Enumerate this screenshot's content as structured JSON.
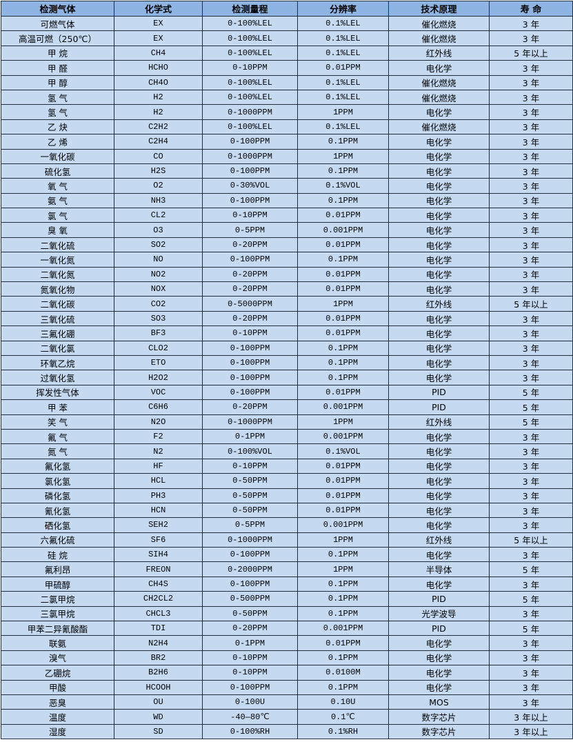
{
  "table": {
    "headers": [
      "检测气体",
      "化学式",
      "检测量程",
      "分辨率",
      "技术原理",
      "寿 命"
    ],
    "rows": [
      [
        "可燃气体",
        "EX",
        "0-100%LEL",
        "0.1%LEL",
        "催化燃烧",
        "3 年"
      ],
      [
        "高温可燃（250℃）",
        "EX",
        "0-100%LEL",
        "0.1%LEL",
        "催化燃烧",
        "3 年"
      ],
      [
        "甲 烷",
        "CH4",
        "0-100%LEL",
        "0.1%LEL",
        "红外线",
        "5 年以上"
      ],
      [
        "甲 醛",
        "HCHO",
        "0-10PPM",
        "0.01PPM",
        "电化学",
        "3 年"
      ],
      [
        "甲 醇",
        "CH4O",
        "0-100%LEL",
        "0.1%LEL",
        "催化燃烧",
        "3 年"
      ],
      [
        "氢 气",
        "H2",
        "0-100%LEL",
        "0.1%LEL",
        "催化燃烧",
        "3 年"
      ],
      [
        "氢 气",
        "H2",
        "0-1000PPM",
        "1PPM",
        "电化学",
        "3 年"
      ],
      [
        "乙 炔",
        "C2H2",
        "0-100%LEL",
        "0.1%LEL",
        "催化燃烧",
        "3 年"
      ],
      [
        "乙 烯",
        "C2H4",
        "0-100PPM",
        "0.1PPM",
        "电化学",
        "3 年"
      ],
      [
        "一氧化碳",
        "CO",
        "0-1000PPM",
        "1PPM",
        "电化学",
        "3 年"
      ],
      [
        "硫化氢",
        "H2S",
        "0-100PPM",
        "0.1PPM",
        "电化学",
        "3 年"
      ],
      [
        "氧 气",
        "O2",
        "0-30%VOL",
        "0.1%VOL",
        "电化学",
        "3 年"
      ],
      [
        "氨 气",
        "NH3",
        "0-100PPM",
        "0.1PPM",
        "电化学",
        "3 年"
      ],
      [
        "氯 气",
        "CL2",
        "0-10PPM",
        "0.01PPM",
        "电化学",
        "3 年"
      ],
      [
        "臭 氧",
        "O3",
        "0-5PPM",
        "0.001PPM",
        "电化学",
        "3 年"
      ],
      [
        "二氧化硫",
        "SO2",
        "0-20PPM",
        "0.01PPM",
        "电化学",
        "3 年"
      ],
      [
        "一氧化氮",
        "NO",
        "0-100PPM",
        "0.1PPM",
        "电化学",
        "3 年"
      ],
      [
        "二氧化氮",
        "NO2",
        "0-20PPM",
        "0.01PPM",
        "电化学",
        "3 年"
      ],
      [
        "氮氧化物",
        "NOX",
        "0-20PPM",
        "0.01PPM",
        "电化学",
        "3 年"
      ],
      [
        "二氧化碳",
        "CO2",
        "0-5000PPM",
        "1PPM",
        "红外线",
        "5 年以上"
      ],
      [
        "三氧化硫",
        "SO3",
        "0-20PPM",
        "0.01PPM",
        "电化学",
        "3 年"
      ],
      [
        "三氟化硼",
        "BF3",
        "0-10PPM",
        "0.01PPM",
        "电化学",
        "3 年"
      ],
      [
        "二氧化氯",
        "CLO2",
        "0-100PPM",
        "0.1PPM",
        "电化学",
        "3 年"
      ],
      [
        "环氧乙烷",
        "ETO",
        "0-100PPM",
        "0.1PPM",
        "电化学",
        "3 年"
      ],
      [
        "过氧化氢",
        "H2O2",
        "0-100PPM",
        "0.1PPM",
        "电化学",
        "3 年"
      ],
      [
        "挥发性气体",
        "VOC",
        "0-100PPM",
        "0.01PPM",
        "PID",
        "5 年"
      ],
      [
        "甲 苯",
        "C6H6",
        "0-20PPM",
        "0.001PPM",
        "PID",
        "5 年"
      ],
      [
        "笑 气",
        "N2O",
        "0-1000PPM",
        "1PPM",
        "红外线",
        "5 年"
      ],
      [
        "氟 气",
        "F2",
        "0-1PPM",
        "0.001PPM",
        "电化学",
        "3 年"
      ],
      [
        "氮 气",
        "N2",
        "0-100%VOL",
        "0.1%VOL",
        "电化学",
        "3 年"
      ],
      [
        "氟化氢",
        "HF",
        "0-10PPM",
        "0.01PPM",
        "电化学",
        "3 年"
      ],
      [
        "氯化氢",
        "HCL",
        "0-50PPM",
        "0.01PPM",
        "电化学",
        "3 年"
      ],
      [
        "磷化氢",
        "PH3",
        "0-50PPM",
        "0.01PPM",
        "电化学",
        "3 年"
      ],
      [
        "氰化氢",
        "HCN",
        "0-50PPM",
        "0.01PPM",
        "电化学",
        "3 年"
      ],
      [
        "硒化氢",
        "SEH2",
        "0-5PPM",
        "0.001PPM",
        "电化学",
        "3 年"
      ],
      [
        "六氟化硫",
        "SF6",
        "0-1000PPM",
        "1PPM",
        "红外线",
        "5 年以上"
      ],
      [
        "硅 烷",
        "SIH4",
        "0-100PPM",
        "0.1PPM",
        "电化学",
        "3 年"
      ],
      [
        "氟利昂",
        "FREON",
        "0-2000PPM",
        "1PPM",
        "半导体",
        "5 年"
      ],
      [
        "甲硫醇",
        "CH4S",
        "0-100PPM",
        "0.1PPM",
        "电化学",
        "3 年"
      ],
      [
        "二氯甲烷",
        "CH2CL2",
        "0-500PPM",
        "0.1PPM",
        "PID",
        "5 年"
      ],
      [
        "三氯甲烷",
        "CHCL3",
        "0-50PPM",
        "0.1PPM",
        "光学波导",
        "3 年"
      ],
      [
        "甲苯二异氰酸酯",
        "TDI",
        "0-20PPM",
        "0.001PPM",
        "PID",
        "5 年"
      ],
      [
        "联氨",
        "N2H4",
        "0-1PPM",
        "0.01PPM",
        "电化学",
        "3 年"
      ],
      [
        "溴气",
        "BR2",
        "0-10PPM",
        "0.1PPM",
        "电化学",
        "3 年"
      ],
      [
        "乙硼烷",
        "B2H6",
        "0-10PPM",
        "0.0100M",
        "电化学",
        "3 年"
      ],
      [
        "甲酸",
        "HCOOH",
        "0-100PPM",
        "0.1PPM",
        "电化学",
        "3 年"
      ],
      [
        "恶臭",
        "OU",
        "0-100U",
        "0.10U",
        "MOS",
        "3 年"
      ],
      [
        "温度",
        "WD",
        "-40—80℃",
        "0.1℃",
        "数字芯片",
        "3 年以上"
      ],
      [
        "湿度",
        "SD",
        "0-100%RH",
        "0.1%RH",
        "数字芯片",
        "3 年以上"
      ]
    ]
  },
  "colors": {
    "header_bg": "#8db4e2",
    "row_bg": "#c5d9f1",
    "border": "#1f2d3d"
  }
}
